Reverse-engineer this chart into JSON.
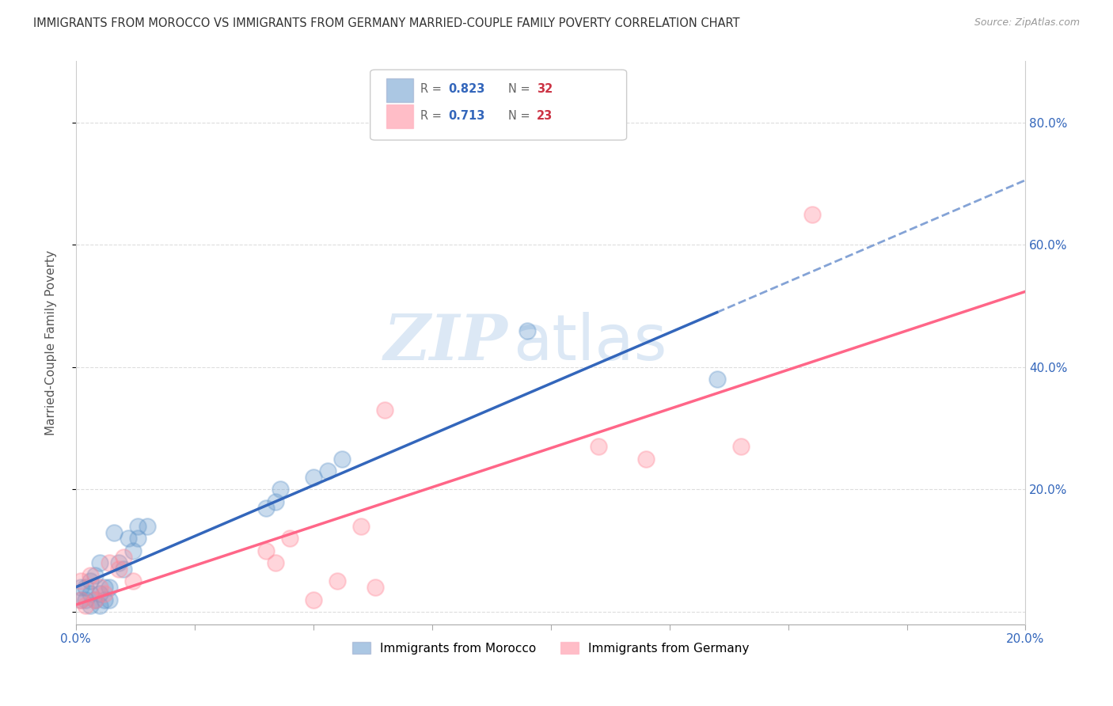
{
  "title": "IMMIGRANTS FROM MOROCCO VS IMMIGRANTS FROM GERMANY MARRIED-COUPLE FAMILY POVERTY CORRELATION CHART",
  "source": "Source: ZipAtlas.com",
  "ylabel": "Married-Couple Family Poverty",
  "xlim": [
    0.0,
    0.2
  ],
  "ylim": [
    -0.02,
    0.9
  ],
  "xticks": [
    0.0,
    0.025,
    0.05,
    0.075,
    0.1,
    0.125,
    0.15,
    0.175,
    0.2
  ],
  "xtick_labels": [
    "0.0%",
    "",
    "",
    "",
    "",
    "",
    "",
    "",
    "20.0%"
  ],
  "yticks": [
    0.0,
    0.2,
    0.4,
    0.6,
    0.8
  ],
  "ytick_labels": [
    "",
    "20.0%",
    "40.0%",
    "60.0%",
    "80.0%"
  ],
  "morocco_color": "#6699CC",
  "germany_color": "#FF8899",
  "morocco_line_color": "#3366BB",
  "germany_line_color": "#FF6688",
  "morocco_R": 0.823,
  "morocco_N": 32,
  "germany_R": 0.713,
  "germany_N": 23,
  "morocco_x": [
    0.001,
    0.001,
    0.002,
    0.002,
    0.003,
    0.003,
    0.003,
    0.004,
    0.004,
    0.005,
    0.005,
    0.005,
    0.006,
    0.006,
    0.007,
    0.007,
    0.008,
    0.009,
    0.01,
    0.011,
    0.012,
    0.013,
    0.013,
    0.015,
    0.04,
    0.042,
    0.043,
    0.05,
    0.053,
    0.056,
    0.095,
    0.135
  ],
  "morocco_y": [
    0.02,
    0.04,
    0.02,
    0.04,
    0.01,
    0.03,
    0.05,
    0.02,
    0.06,
    0.01,
    0.03,
    0.08,
    0.02,
    0.04,
    0.02,
    0.04,
    0.13,
    0.08,
    0.07,
    0.12,
    0.1,
    0.12,
    0.14,
    0.14,
    0.17,
    0.18,
    0.2,
    0.22,
    0.23,
    0.25,
    0.46,
    0.38
  ],
  "germany_x": [
    0.001,
    0.001,
    0.002,
    0.003,
    0.004,
    0.005,
    0.006,
    0.007,
    0.009,
    0.01,
    0.012,
    0.04,
    0.042,
    0.045,
    0.05,
    0.055,
    0.06,
    0.063,
    0.065,
    0.11,
    0.12,
    0.14,
    0.155
  ],
  "germany_y": [
    0.02,
    0.05,
    0.01,
    0.06,
    0.02,
    0.04,
    0.03,
    0.08,
    0.07,
    0.09,
    0.05,
    0.1,
    0.08,
    0.12,
    0.02,
    0.05,
    0.14,
    0.04,
    0.33,
    0.27,
    0.25,
    0.27,
    0.65
  ],
  "background_color": "#ffffff",
  "grid_color": "#dddddd",
  "watermark_zip": "ZIP",
  "watermark_atlas": "atlas",
  "watermark_color": "#dce8f5"
}
